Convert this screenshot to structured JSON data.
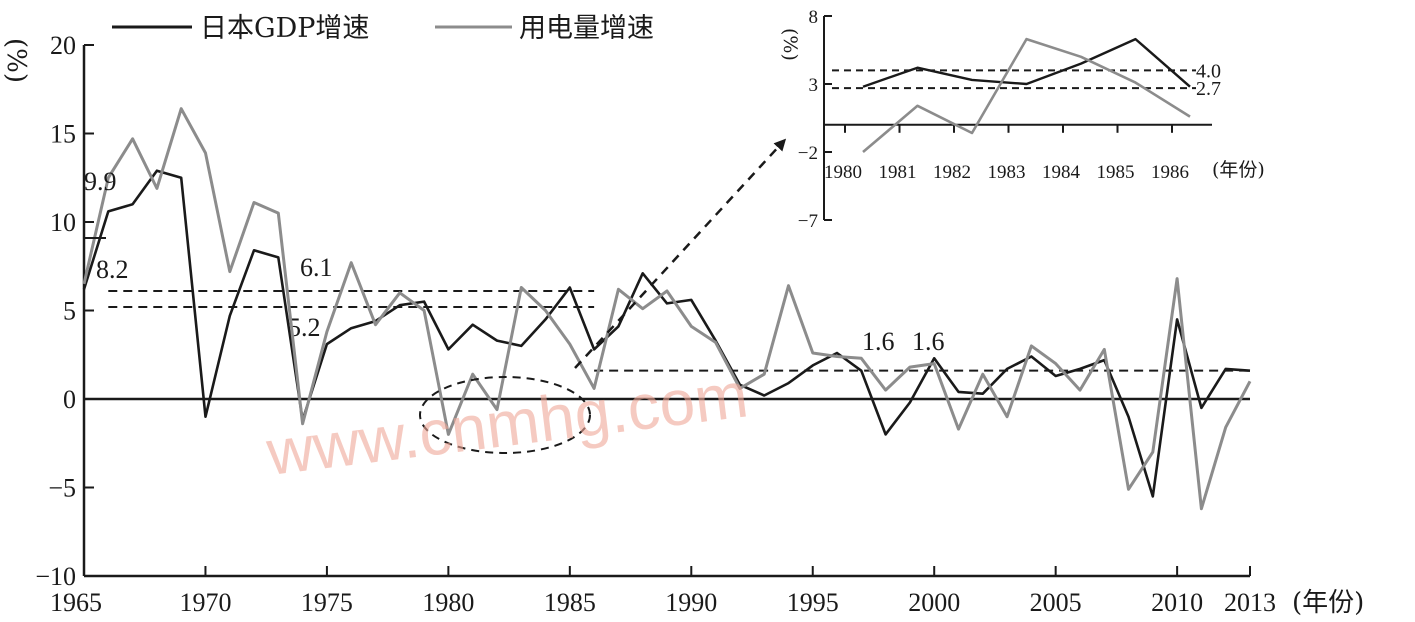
{
  "chart_data": [
    {
      "type": "line",
      "title": "",
      "xlabel": "(年份)",
      "ylabel": "(%)",
      "xlim": [
        1965,
        2013
      ],
      "ylim": [
        -10,
        20
      ],
      "x_ticks": [
        "1965",
        "1970",
        "1975",
        "1980",
        "1985",
        "1990",
        "1995",
        "2000",
        "2005",
        "2010",
        "2013"
      ],
      "y_ticks": [
        "20",
        "15",
        "10",
        "5",
        "0",
        "−5",
        "−10"
      ],
      "legend_position": "top-left",
      "x": [
        1965,
        1966,
        1967,
        1968,
        1969,
        1970,
        1971,
        1972,
        1973,
        1974,
        1975,
        1976,
        1977,
        1978,
        1979,
        1980,
        1981,
        1982,
        1983,
        1984,
        1985,
        1986,
        1987,
        1988,
        1989,
        1990,
        1991,
        1992,
        1993,
        1994,
        1995,
        1996,
        1997,
        1998,
        1999,
        2000,
        2001,
        2002,
        2003,
        2004,
        2005,
        2006,
        2007,
        2008,
        2009,
        2010,
        2011,
        2012,
        2013
      ],
      "series": [
        {
          "name": "日本GDP增速",
          "color": "#1a1a1a",
          "values": [
            6.2,
            10.6,
            11.0,
            12.9,
            12.5,
            -1.0,
            4.7,
            8.4,
            8.0,
            -1.2,
            3.1,
            4.0,
            4.4,
            5.3,
            5.5,
            2.8,
            4.2,
            3.3,
            3.0,
            4.5,
            6.3,
            2.8,
            4.1,
            7.1,
            5.4,
            5.6,
            3.3,
            0.8,
            0.2,
            0.9,
            1.9,
            2.6,
            1.6,
            -2.0,
            -0.2,
            2.3,
            0.4,
            0.3,
            1.7,
            2.4,
            1.3,
            1.7,
            2.2,
            -1.0,
            -5.5,
            4.5,
            -0.5,
            1.7,
            1.6
          ]
        },
        {
          "name": "用电量增速",
          "color": "#8c8c8c",
          "values": [
            6.5,
            12.5,
            14.7,
            11.9,
            16.4,
            13.9,
            7.2,
            11.1,
            10.5,
            -1.4,
            3.8,
            7.7,
            4.2,
            6.0,
            5.0,
            -2.0,
            1.4,
            -0.6,
            6.3,
            5.0,
            3.1,
            0.6,
            6.2,
            5.1,
            6.1,
            4.1,
            3.2,
            0.6,
            1.4,
            6.4,
            2.6,
            2.4,
            2.3,
            0.5,
            1.8,
            2.0,
            -1.7,
            1.4,
            -1.0,
            3.0,
            2.0,
            0.5,
            2.8,
            -5.1,
            -3.0,
            6.8,
            -6.2,
            -1.6,
            1.0
          ]
        }
      ],
      "reference_lines": [
        {
          "y": 6.1,
          "x_from": 1966,
          "x_to": 1986,
          "label": "6.1"
        },
        {
          "y": 5.2,
          "x_from": 1966,
          "x_to": 1986,
          "label": "5.2"
        },
        {
          "y": 1.6,
          "x_from": 1986,
          "x_to": 2013,
          "label": "1.6"
        }
      ],
      "annotations": [
        "9.9",
        "8.2",
        "1.6"
      ]
    },
    {
      "type": "line",
      "title": "",
      "xlabel": "(年份)",
      "ylabel": "(%)",
      "xlim": [
        1980,
        1986
      ],
      "ylim": [
        -7,
        8
      ],
      "x_ticks": [
        "1980",
        "1981",
        "1982",
        "1983",
        "1984",
        "1985",
        "1986"
      ],
      "y_ticks": [
        "8",
        "3",
        "−2",
        "−7"
      ],
      "x": [
        1980,
        1981,
        1982,
        1983,
        1984,
        1985,
        1986
      ],
      "series": [
        {
          "name": "日本GDP增速",
          "color": "#1a1a1a",
          "values": [
            2.8,
            4.2,
            3.3,
            3.0,
            4.5,
            6.3,
            2.8
          ]
        },
        {
          "name": "用电量增速",
          "color": "#8c8c8c",
          "values": [
            -2.0,
            1.4,
            -0.6,
            6.3,
            5.0,
            3.1,
            0.6
          ]
        }
      ],
      "reference_lines": [
        {
          "y": 4.0,
          "label": "4.0"
        },
        {
          "y": 2.7,
          "label": "2.7"
        }
      ]
    }
  ],
  "watermark": "www.cnmhg.com"
}
